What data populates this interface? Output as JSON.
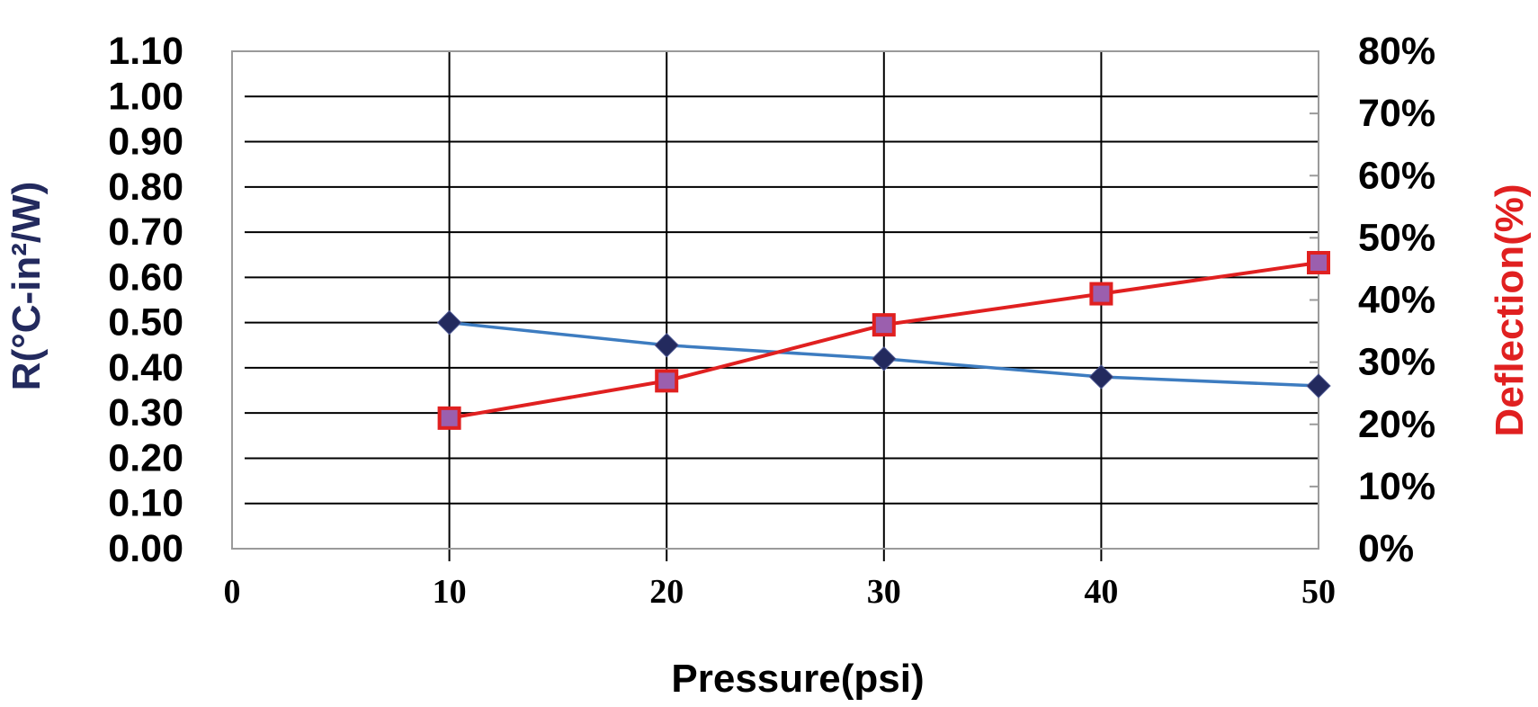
{
  "chart_data": {
    "type": "line",
    "title": "",
    "xlabel": "Pressure(psi)",
    "ylabel_left": "R(°C-in²/W)",
    "ylabel_right": "Deflection(%)",
    "xlim": [
      0,
      50
    ],
    "ylim_left": [
      0,
      1.1
    ],
    "ylim_right": [
      0,
      80
    ],
    "x_ticks": [
      "0",
      "10",
      "20",
      "30",
      "40",
      "50"
    ],
    "y_ticks_left": [
      "0.00",
      "0.10",
      "0.20",
      "0.30",
      "0.40",
      "0.50",
      "0.60",
      "0.70",
      "0.80",
      "0.90",
      "1.00",
      "1.10"
    ],
    "y_ticks_right": [
      "0%",
      "10%",
      "20%",
      "30%",
      "40%",
      "50%",
      "60%",
      "70%",
      "80%"
    ],
    "grid": true,
    "legend": "none",
    "series": [
      {
        "axis": "left",
        "marker": "diamond",
        "color": "#3d7cc0",
        "marker_color": "#232a5e",
        "x": [
          10,
          20,
          30,
          40,
          50
        ],
        "values": [
          0.5,
          0.45,
          0.42,
          0.38,
          0.36
        ]
      },
      {
        "axis": "right",
        "marker": "square",
        "color": "#e02020",
        "marker_color": "#9b5fae",
        "x": [
          10,
          20,
          30,
          40,
          50
        ],
        "values": [
          21,
          27,
          36,
          41,
          46
        ]
      }
    ],
    "colors": {
      "left_axis_title": "#232a5e",
      "right_axis_title": "#e02020"
    }
  }
}
